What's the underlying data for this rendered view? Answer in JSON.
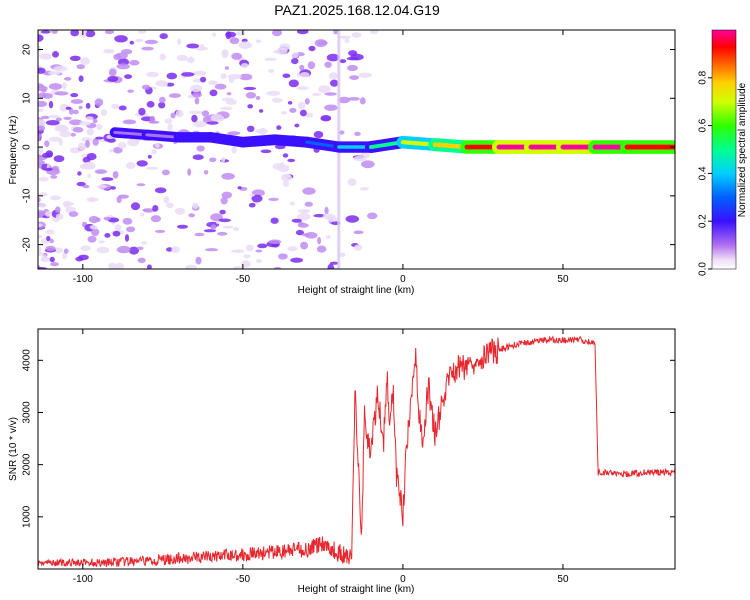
{
  "title": "PAZ1.2025.168.12.04.G19",
  "chart_data": [
    {
      "type": "heatmap",
      "title": "PAZ1.2025.168.12.04.G19",
      "xlabel": "Height of straight line (km)",
      "ylabel": "Frequency (Hz)",
      "xlim": [
        -114,
        85
      ],
      "ylim": [
        -25,
        24
      ],
      "xticks": [
        -100,
        -50,
        0,
        50
      ],
      "yticks": [
        -20,
        -10,
        0,
        10,
        20
      ],
      "colorbar": {
        "label": "Normalized spectral amplitude",
        "range": [
          0.0,
          1.0
        ],
        "ticks": [
          0.0,
          0.2,
          0.4,
          0.6,
          0.8
        ],
        "tick_labels": [
          "0.0",
          "0.2",
          "0.4",
          "0.6",
          "0.8"
        ]
      },
      "ridge": [
        {
          "x": -90,
          "f": 3.0,
          "amp": 0.05
        },
        {
          "x": -80,
          "f": 2.5,
          "amp": 0.08
        },
        {
          "x": -70,
          "f": 2.0,
          "amp": 0.1
        },
        {
          "x": -60,
          "f": 2.0,
          "amp": 0.12
        },
        {
          "x": -50,
          "f": 1.0,
          "amp": 0.15
        },
        {
          "x": -40,
          "f": 1.5,
          "amp": 0.18
        },
        {
          "x": -30,
          "f": 1.0,
          "amp": 0.2
        },
        {
          "x": -20,
          "f": 0.0,
          "amp": 0.25
        },
        {
          "x": -10,
          "f": 0.0,
          "amp": 0.4
        },
        {
          "x": 0,
          "f": 1.0,
          "amp": 0.55
        },
        {
          "x": 10,
          "f": 0.5,
          "amp": 0.75
        },
        {
          "x": 20,
          "f": 0.0,
          "amp": 0.8
        },
        {
          "x": 30,
          "f": 0.0,
          "amp": 0.95
        },
        {
          "x": 40,
          "f": 0.0,
          "amp": 0.98
        },
        {
          "x": 50,
          "f": 0.0,
          "amp": 0.98
        },
        {
          "x": 60,
          "f": 0.0,
          "amp": 0.95
        },
        {
          "x": 70,
          "f": 0.0,
          "amp": 0.92
        },
        {
          "x": 85,
          "f": 0.0,
          "amp": 0.9
        }
      ],
      "grid": false
    },
    {
      "type": "line",
      "xlabel": "Height of straight line (km)",
      "ylabel": "SNR (10 * v/v)",
      "xlim": [
        -114,
        85
      ],
      "ylim": [
        0,
        4600
      ],
      "xticks": [
        -100,
        -50,
        0,
        50
      ],
      "yticks": [
        1000,
        2000,
        3000,
        4000
      ],
      "color": "#e8262d",
      "x": [
        -114,
        -100,
        -90,
        -80,
        -70,
        -60,
        -50,
        -40,
        -30,
        -25,
        -20,
        -16,
        -15,
        -14,
        -13,
        -12,
        -10,
        -8,
        -6,
        -5,
        -4,
        -3,
        -2,
        0,
        1,
        2,
        4,
        5,
        6,
        8,
        10,
        15,
        20,
        25,
        30,
        35,
        40,
        45,
        50,
        55,
        59,
        60,
        61,
        65,
        70,
        75,
        80,
        85
      ],
      "y": [
        120,
        120,
        130,
        150,
        200,
        240,
        280,
        320,
        380,
        500,
        300,
        200,
        3400,
        2200,
        500,
        2900,
        2200,
        3300,
        2500,
        3700,
        2700,
        3500,
        1800,
        1000,
        2200,
        2800,
        4200,
        3000,
        2400,
        3500,
        2600,
        3800,
        3900,
        4100,
        4200,
        4300,
        4350,
        4400,
        4380,
        4400,
        4350,
        4300,
        1850,
        1850,
        1820,
        1850,
        1850,
        1850
      ]
    }
  ]
}
